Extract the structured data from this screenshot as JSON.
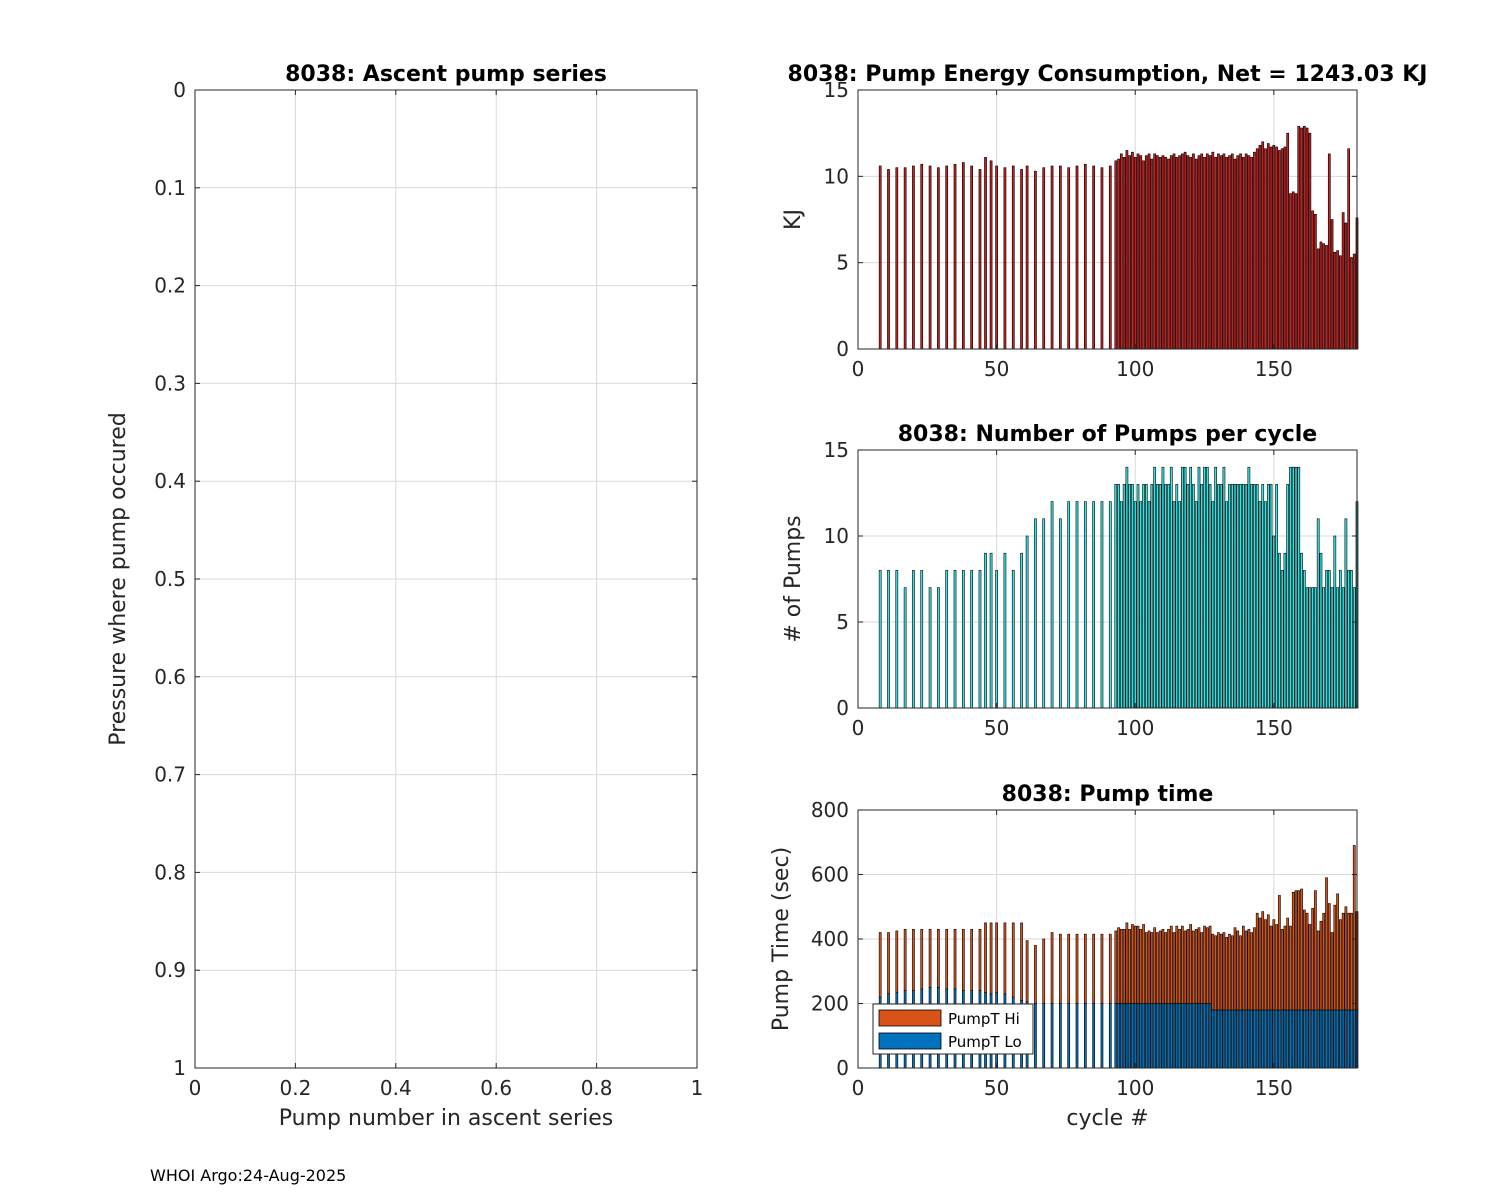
{
  "footer": "WHOI Argo:24-Aug-2025",
  "colors": {
    "energy_bar": "#c81e1e",
    "pumps_bar": "#33e6e6",
    "time_hi": "#d95319",
    "time_lo": "#0072bd",
    "grid": "#d9d9d9",
    "axis": "#262626"
  },
  "chart_data": [
    {
      "id": "ascent",
      "type": "scatter",
      "title": "8038: Ascent pump series",
      "xlabel": "Pump number in ascent series",
      "ylabel": "Pressure where pump occured",
      "xlim": [
        0,
        1
      ],
      "ylim": [
        0,
        1
      ],
      "y_reversed": true,
      "grid": true,
      "xticks": [
        0,
        0.2,
        0.4,
        0.6,
        0.8,
        1
      ],
      "xtick_labels": [
        "0",
        "0.2",
        "0.4",
        "0.6",
        "0.8",
        "1"
      ],
      "yticks": [
        0,
        0.1,
        0.2,
        0.3,
        0.4,
        0.5,
        0.6,
        0.7,
        0.8,
        0.9,
        1
      ],
      "ytick_labels": [
        "0",
        "0.1",
        "0.2",
        "0.3",
        "0.4",
        "0.5",
        "0.6",
        "0.7",
        "0.8",
        "0.9",
        "1"
      ],
      "points": []
    },
    {
      "id": "energy",
      "type": "bar",
      "title": "8038: Pump Energy Consumption,  Net = 1243.03 KJ",
      "xlabel": "",
      "ylabel": "KJ",
      "xlim": [
        0,
        180
      ],
      "ylim": [
        0,
        15
      ],
      "grid": true,
      "xticks": [
        0,
        50,
        100,
        150
      ],
      "xtick_labels": [
        "0",
        "50",
        "100",
        "150"
      ],
      "yticks": [
        0,
        5,
        10,
        15
      ],
      "ytick_labels": [
        "0",
        "5",
        "10",
        "15"
      ],
      "x": [
        8,
        11,
        14,
        17,
        20,
        23,
        26,
        29,
        32,
        35,
        38,
        41,
        44,
        46,
        48,
        50,
        53,
        56,
        59,
        61,
        64,
        67,
        70,
        73,
        76,
        79,
        82,
        85,
        88,
        91,
        93,
        94,
        95,
        96,
        97,
        98,
        99,
        100,
        101,
        102,
        103,
        104,
        105,
        106,
        107,
        108,
        109,
        110,
        111,
        112,
        113,
        114,
        115,
        116,
        117,
        118,
        119,
        120,
        121,
        122,
        123,
        124,
        125,
        126,
        127,
        128,
        129,
        130,
        131,
        132,
        133,
        134,
        135,
        136,
        137,
        138,
        139,
        140,
        141,
        142,
        143,
        144,
        145,
        146,
        147,
        148,
        149,
        150,
        151,
        152,
        153,
        154,
        155,
        156,
        157,
        158,
        159,
        160,
        161,
        162,
        163,
        164,
        165,
        166,
        167,
        168,
        169,
        170,
        171,
        172,
        173,
        174,
        175,
        176,
        177,
        178,
        179,
        180
      ],
      "values": [
        10.6,
        10.4,
        10.5,
        10.5,
        10.6,
        10.7,
        10.6,
        10.5,
        10.6,
        10.7,
        10.8,
        10.6,
        10.4,
        11.1,
        10.9,
        10.6,
        10.5,
        10.6,
        10.4,
        10.6,
        10.3,
        10.5,
        10.6,
        10.6,
        10.5,
        10.6,
        10.7,
        10.6,
        10.5,
        10.6,
        10.9,
        11.0,
        11.3,
        11.1,
        11.5,
        11.2,
        11.4,
        11.1,
        11.3,
        11.2,
        10.9,
        11.2,
        11.3,
        11.0,
        11.3,
        11.2,
        11.1,
        11.2,
        11.1,
        11.0,
        11.2,
        11.3,
        11.1,
        11.2,
        11.3,
        11.4,
        11.2,
        11.1,
        11.3,
        11.0,
        11.2,
        11.3,
        11.1,
        11.3,
        11.2,
        11.4,
        11.1,
        11.3,
        11.2,
        11.3,
        11.1,
        11.2,
        11.3,
        11.0,
        11.2,
        11.3,
        11.1,
        11.3,
        11.2,
        11.1,
        11.4,
        11.6,
        11.8,
        12.0,
        11.6,
        11.9,
        11.7,
        11.8,
        11.7,
        11.5,
        11.6,
        11.7,
        12.5,
        9.0,
        9.1,
        9.0,
        12.9,
        12.8,
        12.9,
        12.8,
        12.5,
        8.0,
        7.8,
        5.8,
        6.2,
        6.1,
        6.0,
        11.3,
        7.5,
        5.6,
        5.7,
        5.4,
        7.9,
        7.3,
        11.6,
        5.3,
        5.5,
        7.6
      ],
      "bar_width": 0.75
    },
    {
      "id": "pumps",
      "type": "bar",
      "title": "8038: Number of Pumps per cycle",
      "xlabel": "",
      "ylabel": "# of Pumps",
      "xlim": [
        0,
        180
      ],
      "ylim": [
        0,
        15
      ],
      "grid": true,
      "xticks": [
        0,
        50,
        100,
        150
      ],
      "xtick_labels": [
        "0",
        "50",
        "100",
        "150"
      ],
      "yticks": [
        0,
        5,
        10,
        15
      ],
      "ytick_labels": [
        "0",
        "5",
        "10",
        "15"
      ],
      "x": [
        8,
        11,
        14,
        17,
        20,
        23,
        26,
        29,
        32,
        35,
        38,
        41,
        44,
        46,
        48,
        50,
        53,
        56,
        59,
        61,
        64,
        67,
        70,
        73,
        76,
        79,
        82,
        85,
        88,
        91,
        93,
        94,
        95,
        96,
        97,
        98,
        99,
        100,
        101,
        102,
        103,
        104,
        105,
        106,
        107,
        108,
        109,
        110,
        111,
        112,
        113,
        114,
        115,
        116,
        117,
        118,
        119,
        120,
        121,
        122,
        123,
        124,
        125,
        126,
        127,
        128,
        129,
        130,
        131,
        132,
        133,
        134,
        135,
        136,
        137,
        138,
        139,
        140,
        141,
        142,
        143,
        144,
        145,
        146,
        147,
        148,
        149,
        150,
        151,
        152,
        153,
        154,
        155,
        156,
        157,
        158,
        159,
        160,
        161,
        162,
        163,
        164,
        165,
        166,
        167,
        168,
        169,
        170,
        171,
        172,
        173,
        174,
        175,
        176,
        177,
        178,
        179,
        180
      ],
      "values": [
        8,
        8,
        8,
        7,
        8,
        8,
        7,
        7,
        8,
        8,
        8,
        8,
        8,
        9,
        9,
        8,
        9,
        8,
        9,
        10,
        11,
        11,
        12,
        11,
        12,
        12,
        12,
        12,
        12,
        12,
        13,
        13,
        12,
        13,
        14,
        13,
        13,
        12,
        13,
        12,
        13,
        13,
        12,
        13,
        14,
        13,
        13,
        14,
        13,
        13,
        14,
        12,
        13,
        12,
        14,
        14,
        13,
        14,
        13,
        12,
        14,
        13,
        14,
        14,
        13,
        12,
        14,
        13,
        13,
        14,
        12,
        13,
        13,
        13,
        13,
        13,
        13,
        13,
        14,
        13,
        13,
        13,
        12,
        13,
        12,
        13,
        13,
        10,
        13,
        9,
        8,
        9,
        13,
        14,
        14,
        14,
        14,
        9,
        8,
        7,
        7,
        7,
        7,
        11,
        9,
        7,
        8,
        8,
        7,
        10,
        7,
        8,
        7,
        11,
        8,
        8,
        7,
        12
      ],
      "bar_width": 0.75
    },
    {
      "id": "time",
      "type": "bar",
      "stacked": true,
      "title": "8038: Pump time",
      "xlabel": "cycle #",
      "ylabel": "Pump Time (sec)",
      "xlim": [
        0,
        180
      ],
      "ylim": [
        0,
        800
      ],
      "grid": true,
      "xticks": [
        0,
        50,
        100,
        150
      ],
      "xtick_labels": [
        "0",
        "50",
        "100",
        "150"
      ],
      "yticks": [
        0,
        200,
        400,
        600,
        800
      ],
      "ytick_labels": [
        "0",
        "200",
        "400",
        "600",
        "800"
      ],
      "legend": {
        "position": "bottom-left",
        "entries": [
          "PumpT Hi",
          "PumpT Lo"
        ]
      },
      "x": [
        8,
        11,
        14,
        17,
        20,
        23,
        26,
        29,
        32,
        35,
        38,
        41,
        44,
        46,
        48,
        50,
        53,
        56,
        59,
        61,
        64,
        67,
        70,
        73,
        76,
        79,
        82,
        85,
        88,
        91,
        93,
        94,
        95,
        96,
        97,
        98,
        99,
        100,
        101,
        102,
        103,
        104,
        105,
        106,
        107,
        108,
        109,
        110,
        111,
        112,
        113,
        114,
        115,
        116,
        117,
        118,
        119,
        120,
        121,
        122,
        123,
        124,
        125,
        126,
        127,
        128,
        129,
        130,
        131,
        132,
        133,
        134,
        135,
        136,
        137,
        138,
        139,
        140,
        141,
        142,
        143,
        144,
        145,
        146,
        147,
        148,
        149,
        150,
        151,
        152,
        153,
        154,
        155,
        156,
        157,
        158,
        159,
        160,
        161,
        162,
        163,
        164,
        165,
        166,
        167,
        168,
        169,
        170,
        171,
        172,
        173,
        174,
        175,
        176,
        177,
        178,
        179,
        180
      ],
      "series": [
        {
          "name": "PumpT Lo",
          "values": [
            220,
            230,
            235,
            240,
            240,
            245,
            250,
            250,
            245,
            245,
            240,
            240,
            240,
            235,
            230,
            235,
            230,
            220,
            210,
            205,
            200,
            200,
            200,
            200,
            200,
            200,
            200,
            200,
            200,
            200,
            200,
            200,
            200,
            200,
            200,
            200,
            200,
            200,
            200,
            200,
            200,
            200,
            200,
            200,
            200,
            200,
            200,
            200,
            200,
            200,
            200,
            200,
            200,
            200,
            200,
            200,
            200,
            200,
            200,
            200,
            200,
            200,
            200,
            200,
            200,
            180,
            180,
            180,
            180,
            180,
            180,
            180,
            180,
            180,
            180,
            180,
            180,
            180,
            180,
            180,
            180,
            180,
            180,
            180,
            180,
            180,
            180,
            180,
            180,
            180,
            180,
            180,
            180,
            180,
            180,
            180,
            180,
            180,
            180,
            180,
            180,
            180,
            180,
            180,
            180,
            180,
            180,
            180,
            180,
            180,
            180,
            180,
            180,
            180,
            180,
            180,
            180,
            180
          ]
        },
        {
          "name": "PumpT Hi",
          "values": [
            200,
            190,
            190,
            190,
            190,
            185,
            180,
            180,
            185,
            185,
            190,
            190,
            190,
            215,
            220,
            215,
            220,
            230,
            240,
            190,
            180,
            200,
            220,
            215,
            215,
            215,
            215,
            215,
            215,
            215,
            225,
            235,
            230,
            230,
            250,
            230,
            245,
            240,
            240,
            230,
            245,
            220,
            225,
            220,
            235,
            220,
            225,
            230,
            220,
            230,
            240,
            220,
            240,
            230,
            240,
            225,
            230,
            245,
            225,
            230,
            235,
            220,
            240,
            235,
            240,
            235,
            230,
            240,
            235,
            240,
            225,
            235,
            230,
            255,
            245,
            230,
            260,
            245,
            250,
            240,
            255,
            300,
            285,
            305,
            280,
            295,
            260,
            280,
            265,
            355,
            250,
            260,
            285,
            260,
            365,
            370,
            370,
            375,
            310,
            300,
            265,
            315,
            370,
            245,
            275,
            300,
            410,
            330,
            240,
            325,
            360,
            280,
            300,
            320,
            300,
            300,
            510,
            305
          ]
        }
      ],
      "bar_width": 0.75
    }
  ]
}
